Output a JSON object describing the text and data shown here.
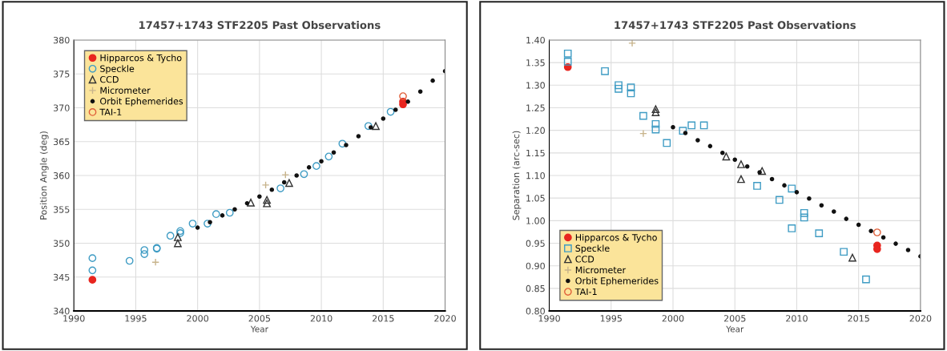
{
  "chart_data": [
    {
      "type": "scatter",
      "title": "17457+1743 STF2205 Past Observations",
      "xlabel": "Year",
      "ylabel": "Position Angle (deg)",
      "xlim": [
        1990,
        2020
      ],
      "xticks": [
        1990,
        1995,
        2000,
        2005,
        2010,
        2015,
        2020
      ],
      "ylim": [
        340,
        380
      ],
      "yticks": [
        340,
        345,
        350,
        355,
        360,
        365,
        370,
        375,
        380
      ],
      "grid": true,
      "legend": "top left",
      "series": [
        {
          "name": "Hipparcos & Tycho",
          "color": "#e8251f",
          "marker": "circle",
          "x": [
            1991.5,
            2016.6,
            2016.6
          ],
          "values": [
            344.6,
            370.5,
            370.9
          ]
        },
        {
          "name": "Speckle",
          "color": "#3f9cc4",
          "marker": "circle",
          "x": [
            1991.5,
            1991.5,
            1994.5,
            1995.7,
            1995.7,
            1996.7,
            1996.7,
            1997.8,
            1998.6,
            1998.6,
            1999.6,
            2000.8,
            2001.5,
            2002.6,
            2006.7,
            2008.6,
            2009.6,
            2010.6,
            2011.7,
            2013.8,
            2015.6
          ],
          "values": [
            346.0,
            347.8,
            347.4,
            348.4,
            349.0,
            349.2,
            349.3,
            351.1,
            351.5,
            351.8,
            352.9,
            352.9,
            354.3,
            354.5,
            358.1,
            360.2,
            361.4,
            362.8,
            364.7,
            367.3,
            369.4
          ]
        },
        {
          "name": "CCD",
          "color": "#333333",
          "marker": "triangle",
          "x": [
            1998.4,
            1998.4,
            2004.3,
            2005.6,
            2005.6,
            2007.4,
            2014.4
          ],
          "values": [
            350.0,
            350.9,
            356.0,
            355.9,
            356.4,
            358.9,
            367.3
          ]
        },
        {
          "name": "Micrometer",
          "color": "#c8b48c",
          "marker": "cross",
          "x": [
            1996.6,
            2005.5,
            2007.1
          ],
          "values": [
            347.2,
            358.6,
            360.1
          ]
        },
        {
          "name": "Orbit Ephemerides",
          "color": "#111111",
          "marker": "circle",
          "x": [
            2000,
            2001,
            2002,
            2003,
            2004,
            2005,
            2006,
            2007,
            2008,
            2009,
            2010,
            2011,
            2012,
            2013,
            2014,
            2015,
            2016,
            2017,
            2018,
            2019,
            2020
          ],
          "values": [
            352.3,
            353.1,
            354.1,
            355.0,
            355.9,
            356.9,
            357.9,
            359.0,
            360.0,
            361.2,
            362.1,
            363.4,
            364.5,
            365.8,
            367.1,
            368.4,
            369.7,
            370.9,
            372.4,
            374.0,
            375.4
          ]
        },
        {
          "name": "TAI-1",
          "color": "#e0603a",
          "marker": "circle",
          "x": [
            2016.6
          ],
          "values": [
            371.7
          ]
        }
      ]
    },
    {
      "type": "scatter",
      "title": "17457+1743 STF2205 Past Observations",
      "xlabel": "Year",
      "ylabel": "Separation (arc-sec)",
      "xlim": [
        1990,
        2020
      ],
      "xticks": [
        1990,
        1995,
        2000,
        2005,
        2010,
        2015,
        2020
      ],
      "ylim": [
        0.8,
        1.4
      ],
      "yticks": [
        {
          "value": 0.8,
          "label": "0.80"
        },
        {
          "value": 0.85,
          "label": "0.85"
        },
        {
          "value": 0.9,
          "label": "0.90"
        },
        {
          "value": 0.95,
          "label": "0.95"
        },
        {
          "value": 1.0,
          "label": "1.00"
        },
        {
          "value": 1.05,
          "label": "1.05"
        },
        {
          "value": 1.1,
          "label": "1.10"
        },
        {
          "value": 1.15,
          "label": "1.15"
        },
        {
          "value": 1.2,
          "label": "1.20"
        },
        {
          "value": 1.25,
          "label": "1.25"
        },
        {
          "value": 1.3,
          "label": "1.30"
        },
        {
          "value": 1.35,
          "label": "1.35"
        },
        {
          "value": 1.4,
          "label": "1.40"
        }
      ],
      "grid": true,
      "legend": "bottom left",
      "series": [
        {
          "name": "Hipparcos & Tycho",
          "color": "#e8251f",
          "marker": "circle",
          "x": [
            1991.5,
            2016.5,
            2016.5
          ],
          "values": [
            1.34,
            0.945,
            0.937
          ]
        },
        {
          "name": "Speckle",
          "color": "#3f9cc4",
          "marker": "square",
          "x": [
            1991.5,
            1991.5,
            1994.5,
            1995.6,
            1995.6,
            1996.6,
            1996.6,
            1997.6,
            1998.6,
            1998.6,
            1999.5,
            2000.8,
            2001.5,
            2002.5,
            2006.8,
            2008.6,
            2009.6,
            2009.6,
            2010.6,
            2010.6,
            2011.8,
            2013.8,
            2015.6
          ],
          "values": [
            1.37,
            1.352,
            1.331,
            1.3,
            1.292,
            1.295,
            1.282,
            1.232,
            1.214,
            1.202,
            1.172,
            1.199,
            1.211,
            1.211,
            1.077,
            1.046,
            1.071,
            0.983,
            1.017,
            1.007,
            0.972,
            0.931,
            0.87
          ]
        },
        {
          "name": "CCD",
          "color": "#333333",
          "marker": "triangle",
          "x": [
            1998.6,
            1998.6,
            2004.3,
            2005.5,
            2005.5,
            2007.2,
            2014.5
          ],
          "values": [
            1.247,
            1.24,
            1.142,
            1.125,
            1.092,
            1.11,
            0.918
          ]
        },
        {
          "name": "Micrometer",
          "color": "#c8b48c",
          "marker": "cross",
          "x": [
            1996.7,
            1997.6
          ],
          "values": [
            1.393,
            1.193
          ]
        },
        {
          "name": "Orbit Ephemerides",
          "color": "#111111",
          "marker": "circle",
          "x": [
            2000,
            2001,
            2002,
            2003,
            2004,
            2005,
            2006,
            2007,
            2008,
            2009,
            2010,
            2011,
            2012,
            2013,
            2014,
            2015,
            2016,
            2017,
            2018,
            2019,
            2020
          ],
          "values": [
            1.207,
            1.194,
            1.178,
            1.165,
            1.15,
            1.135,
            1.12,
            1.107,
            1.092,
            1.078,
            1.063,
            1.049,
            1.034,
            1.02,
            1.004,
            0.991,
            0.977,
            0.963,
            0.949,
            0.935,
            0.921
          ]
        },
        {
          "name": "TAI-1",
          "color": "#e0603a",
          "marker": "circle",
          "x": [
            2016.5
          ],
          "values": [
            0.974
          ]
        }
      ]
    }
  ]
}
